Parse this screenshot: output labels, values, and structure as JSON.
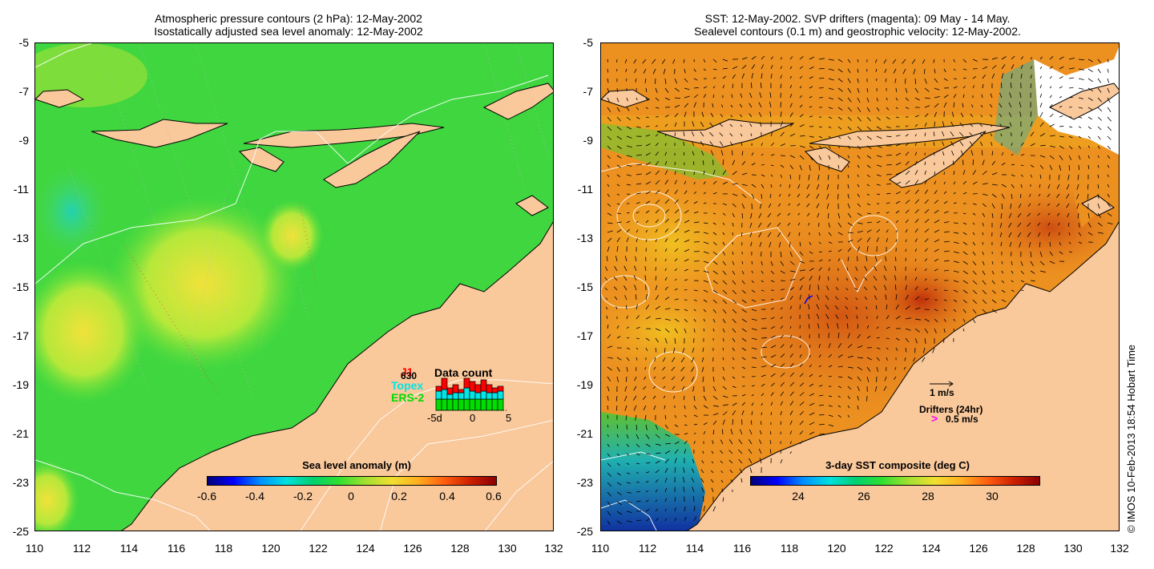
{
  "left_panel": {
    "title_line1": "Atmospheric pressure contours (2 hPa): 12-May-2002",
    "title_line2": "Isostatically adjusted sea level anomaly: 12-May-2002",
    "colorbar": {
      "title": "Sea level anomaly (m)",
      "labels": [
        "-0.6",
        "-0.4",
        "-0.2",
        "0",
        "0.2",
        "0.4",
        "0.6"
      ]
    },
    "data_count": {
      "label_t": "J1",
      "label_count": "630",
      "label_topex": "Topex",
      "label_ers": "ERS-2",
      "title": "Data count",
      "axis_labels": [
        "-5d",
        "0",
        "5"
      ],
      "colors": {
        "j1": "#ff0000",
        "topex": "#00e5e5",
        "ers2": "#00dd00"
      }
    }
  },
  "right_panel": {
    "title_line1": "SST: 12-May-2002. SVP drifters (magenta): 09 May - 14 May.",
    "title_line2": "Sealevel contours (0.1 m) and geostrophic velocity: 12-May-2002.",
    "colorbar": {
      "title": "3-day SST composite (deg C)",
      "labels": [
        "24",
        "26",
        "28",
        "30"
      ]
    },
    "legend": {
      "vel_label": "1 m/s",
      "drifters_label": "Drifters (24hr)",
      "drifter_speed": "0.5 m/s",
      "drifter_symbol": ">"
    }
  },
  "axes": {
    "y_labels": [
      "-5",
      "-7",
      "-9",
      "-11",
      "-13",
      "-15",
      "-17",
      "-19",
      "-21",
      "-23",
      "-25"
    ],
    "x_labels": [
      "110",
      "112",
      "114",
      "116",
      "118",
      "120",
      "122",
      "124",
      "126",
      "128",
      "130",
      "132"
    ],
    "lon_range": [
      110,
      132
    ],
    "lat_range": [
      -25,
      -5
    ]
  },
  "credit": "© IMOS 10-Feb-2013 18:54 Hobart Time",
  "colors": {
    "land": "#f9c89b",
    "coast": "#000000",
    "contour": "#ffffff",
    "drifter": "#ff00ff"
  }
}
